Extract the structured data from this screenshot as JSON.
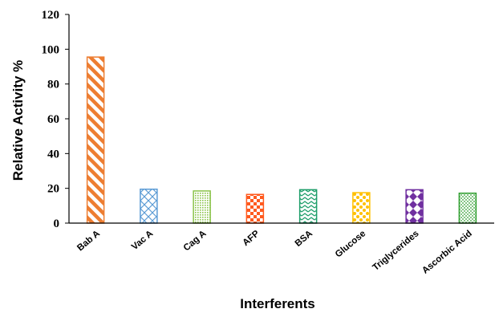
{
  "chart_data": {
    "type": "bar",
    "title": "",
    "xlabel": "Interferents",
    "ylabel": "Relative Activity %",
    "ylim": [
      0,
      120
    ],
    "yticks": [
      0,
      20,
      40,
      60,
      80,
      100,
      120
    ],
    "grid": false,
    "legend": "none",
    "categories": [
      "Bab A",
      "Vac A",
      "Cag A",
      "AFP",
      "BSA",
      "Glucose",
      "Triglycerides",
      "Ascorbic Acid"
    ],
    "values": [
      95.5,
      19.5,
      18.5,
      16.5,
      19.2,
      17.5,
      19.2,
      17.2
    ],
    "bar_styles": [
      {
        "pattern": "diagonal-stripes",
        "color": "#ED7D31"
      },
      {
        "pattern": "crosshatch-diamond",
        "color": "#5B9BD5"
      },
      {
        "pattern": "dots-fine",
        "color": "#8BC34A"
      },
      {
        "pattern": "checkerboard",
        "color": "#FF5A1F"
      },
      {
        "pattern": "zigzag",
        "color": "#1E9E6A"
      },
      {
        "pattern": "large-dots",
        "color": "#FFC000"
      },
      {
        "pattern": "diamonds",
        "color": "#7030A0"
      },
      {
        "pattern": "small-dots",
        "color": "#2E9E2E"
      }
    ]
  }
}
